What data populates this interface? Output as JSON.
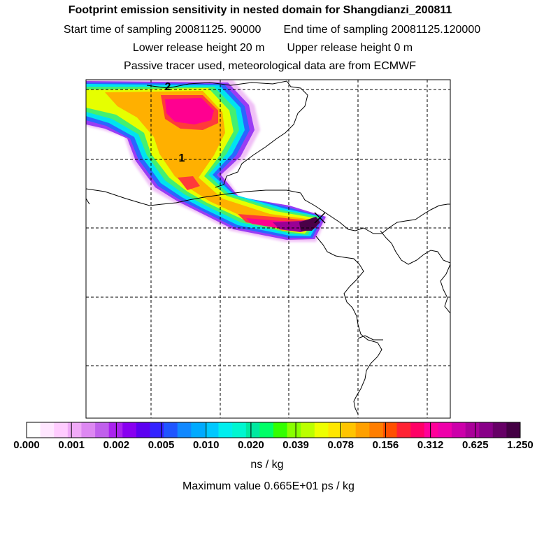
{
  "header": {
    "title": "Footprint emission sensitivity in nested domain for Shangdianzi_200811",
    "start_label": "Start time of sampling 20081125. 90000",
    "end_label": "End time of sampling 20081125.120000",
    "lower_label": "Lower release height   20 m",
    "upper_label": "Upper release height    0 m",
    "note": "Passive tracer used, meteorological data are from ECMWF"
  },
  "map": {
    "markers": [
      {
        "label": "2"
      },
      {
        "label": "1"
      }
    ],
    "release_symbol": "x-marker-icon"
  },
  "colorbar": {
    "colors": [
      "#ffffff",
      "#ffe6ff",
      "#ffccff",
      "#f0aaf8",
      "#dd88f2",
      "#c060ec",
      "#aa22ee",
      "#8800f0",
      "#5c00f0",
      "#3322ff",
      "#1f55ff",
      "#1188ff",
      "#00aaff",
      "#00c8ff",
      "#00eeee",
      "#00f6d0",
      "#00e8a0",
      "#00ff66",
      "#33ff00",
      "#88ff00",
      "#bbff00",
      "#eeff00",
      "#ffe600",
      "#ffc400",
      "#ffa000",
      "#ff7e00",
      "#ff5000",
      "#ff2233",
      "#ff0066",
      "#ff0099",
      "#ee00aa",
      "#cc00aa",
      "#aa0099",
      "#880088",
      "#660066",
      "#440044"
    ],
    "ticks": [
      "0.000",
      "0.001",
      "0.002",
      "0.005",
      "0.010",
      "0.020",
      "0.039",
      "0.078",
      "0.156",
      "0.312",
      "0.625",
      "1.250"
    ],
    "unit": "ns / kg"
  },
  "max_value_label": "Maximum value  0.665E+01 ps / kg"
}
